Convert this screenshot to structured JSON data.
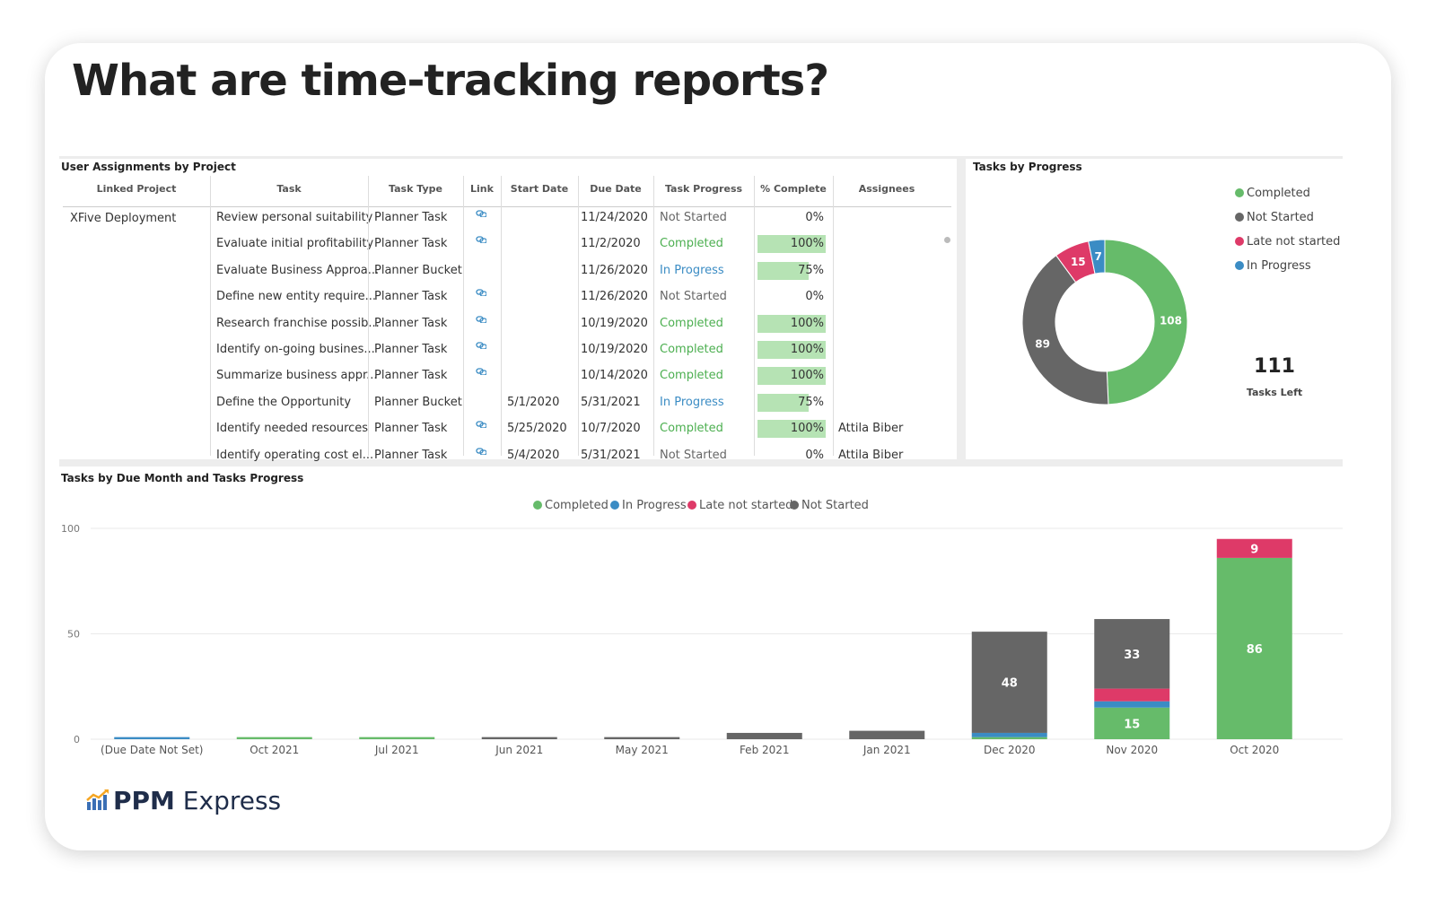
{
  "headline": "What are time-tracking reports?",
  "colors": {
    "completed": "#66bb6a",
    "not_started": "#666666",
    "late_not_started": "#de3a68",
    "in_progress": "#3b8cc4",
    "progress_fill": "#b6e3b4"
  },
  "assignments": {
    "title": "User Assignments by Project",
    "columns": [
      "Linked Project",
      "Task",
      "Task Type",
      "Link",
      "Start Date",
      "Due Date",
      "Task Progress",
      "% Complete",
      "Assignees"
    ],
    "project": "XFive Deployment",
    "rows": [
      {
        "task": "Review personal suitability",
        "type": "Planner Task",
        "link": true,
        "start": "",
        "due": "11/24/2020",
        "progress": "Not Started",
        "pct": "0%",
        "pct_value": 0,
        "assignee": ""
      },
      {
        "task": "Evaluate initial profitability",
        "type": "Planner Task",
        "link": true,
        "start": "",
        "due": "11/2/2020",
        "progress": "Completed",
        "pct": "100%",
        "pct_value": 100,
        "assignee": ""
      },
      {
        "task": "Evaluate Business Approa...",
        "type": "Planner Bucket",
        "link": false,
        "start": "",
        "due": "11/26/2020",
        "progress": "In Progress",
        "pct": "75%",
        "pct_value": 75,
        "assignee": ""
      },
      {
        "task": "Define new entity require...",
        "type": "Planner Task",
        "link": true,
        "start": "",
        "due": "11/26/2020",
        "progress": "Not Started",
        "pct": "0%",
        "pct_value": 0,
        "assignee": ""
      },
      {
        "task": "Research franchise possib...",
        "type": "Planner Task",
        "link": true,
        "start": "",
        "due": "10/19/2020",
        "progress": "Completed",
        "pct": "100%",
        "pct_value": 100,
        "assignee": ""
      },
      {
        "task": "Identify on-going busines...",
        "type": "Planner Task",
        "link": true,
        "start": "",
        "due": "10/19/2020",
        "progress": "Completed",
        "pct": "100%",
        "pct_value": 100,
        "assignee": ""
      },
      {
        "task": "Summarize business appr...",
        "type": "Planner Task",
        "link": true,
        "start": "",
        "due": "10/14/2020",
        "progress": "Completed",
        "pct": "100%",
        "pct_value": 100,
        "assignee": ""
      },
      {
        "task": "Define the Opportunity",
        "type": "Planner Bucket",
        "link": false,
        "start": "5/1/2020",
        "due": "5/31/2021",
        "progress": "In Progress",
        "pct": "75%",
        "pct_value": 75,
        "assignee": ""
      },
      {
        "task": "Identify needed resources",
        "type": "Planner Task",
        "link": true,
        "start": "5/25/2020",
        "due": "10/7/2020",
        "progress": "Completed",
        "pct": "100%",
        "pct_value": 100,
        "assignee": "Attila Biber"
      },
      {
        "task": "Identify operating cost el...",
        "type": "Planner Task",
        "link": true,
        "start": "5/4/2020",
        "due": "5/31/2021",
        "progress": "Not Started",
        "pct": "0%",
        "pct_value": 0,
        "assignee": "Attila Biber"
      }
    ]
  },
  "donut": {
    "title": "Tasks by Progress",
    "legend": [
      "Completed",
      "Not Started",
      "Late not started",
      "In Progress"
    ],
    "tasks_left_value": "111",
    "tasks_left_label": "Tasks Left"
  },
  "bar_chart": {
    "title": "Tasks by Due Month and Tasks Progress",
    "legend": [
      "Completed",
      "In Progress",
      "Late not started",
      "Not Started"
    ]
  },
  "chart_data": [
    {
      "type": "pie",
      "title": "Tasks by Progress",
      "categories": [
        "Completed",
        "Not Started",
        "Late not started",
        "In Progress"
      ],
      "values": [
        108,
        89,
        15,
        7
      ]
    },
    {
      "type": "bar",
      "title": "Tasks by Due Month and Tasks Progress",
      "stacked": true,
      "categories": [
        "(Due Date Not Set)",
        "Oct 2021",
        "Jul 2021",
        "Jun 2021",
        "May 2021",
        "Feb 2021",
        "Jan 2021",
        "Dec 2020",
        "Nov 2020",
        "Oct 2020"
      ],
      "series": [
        {
          "name": "Completed",
          "values": [
            0,
            1,
            1,
            0,
            0,
            0,
            0,
            1,
            15,
            86
          ]
        },
        {
          "name": "In Progress",
          "values": [
            1,
            0,
            0,
            0,
            0,
            0,
            0,
            2,
            3,
            0
          ]
        },
        {
          "name": "Late not started",
          "values": [
            0,
            0,
            0,
            0,
            0,
            0,
            0,
            0,
            6,
            9
          ]
        },
        {
          "name": "Not Started",
          "values": [
            0,
            0,
            0,
            1,
            1,
            3,
            4,
            48,
            33,
            0
          ]
        }
      ],
      "data_labels": {
        "Completed": {
          "Nov 2020": "15",
          "Oct 2020": "86"
        },
        "Late not started": {
          "Oct 2020": "9"
        },
        "Not Started": {
          "Dec 2020": "48",
          "Nov 2020": "33"
        }
      },
      "yticks": [
        "0",
        "50",
        "100"
      ],
      "ylim": [
        0,
        100
      ],
      "grid": true,
      "legend_position": "top"
    }
  ],
  "brand": {
    "bold": "PPM",
    "rest": " Express"
  }
}
